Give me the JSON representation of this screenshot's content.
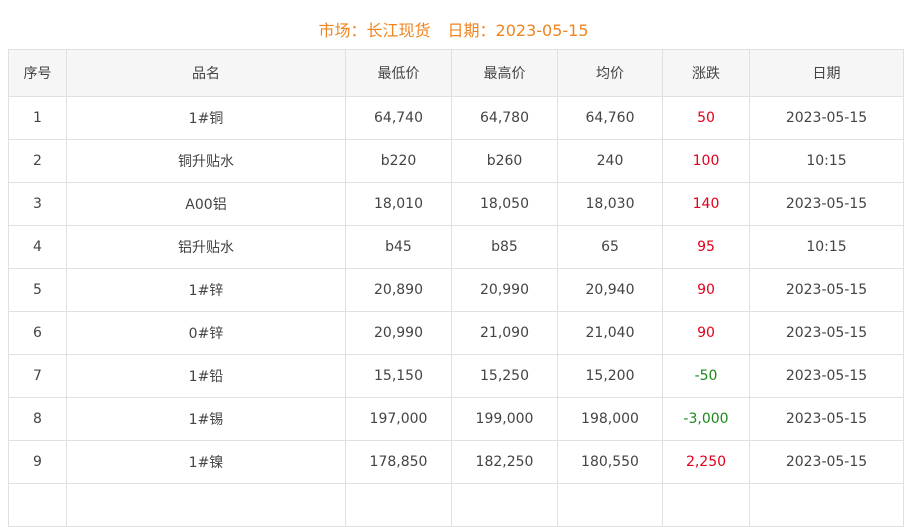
{
  "title": {
    "market": "市场：长江现货",
    "date": "日期：2023-05-15"
  },
  "colors": {
    "title": "#f0851f",
    "up": "#e0001b",
    "down": "#1a8a1a"
  },
  "columns": [
    "序号",
    "品名",
    "最低价",
    "最高价",
    "均价",
    "涨跌",
    "日期"
  ],
  "rows": [
    {
      "no": "1",
      "name": "1#铜",
      "low": "64,740",
      "high": "64,780",
      "avg": "64,760",
      "change": "50",
      "dir": "up",
      "date": "2023-05-15"
    },
    {
      "no": "2",
      "name": "铜升贴水",
      "low": "b220",
      "high": "b260",
      "avg": "240",
      "change": "100",
      "dir": "up",
      "date": "10:15"
    },
    {
      "no": "3",
      "name": "A00铝",
      "low": "18,010",
      "high": "18,050",
      "avg": "18,030",
      "change": "140",
      "dir": "up",
      "date": "2023-05-15"
    },
    {
      "no": "4",
      "name": "铝升贴水",
      "low": "b45",
      "high": "b85",
      "avg": "65",
      "change": "95",
      "dir": "up",
      "date": "10:15"
    },
    {
      "no": "5",
      "name": "1#锌",
      "low": "20,890",
      "high": "20,990",
      "avg": "20,940",
      "change": "90",
      "dir": "up",
      "date": "2023-05-15"
    },
    {
      "no": "6",
      "name": "0#锌",
      "low": "20,990",
      "high": "21,090",
      "avg": "21,040",
      "change": "90",
      "dir": "up",
      "date": "2023-05-15"
    },
    {
      "no": "7",
      "name": "1#铅",
      "low": "15,150",
      "high": "15,250",
      "avg": "15,200",
      "change": "-50",
      "dir": "down",
      "date": "2023-05-15"
    },
    {
      "no": "8",
      "name": "1#锡",
      "low": "197,000",
      "high": "199,000",
      "avg": "198,000",
      "change": "-3,000",
      "dir": "down",
      "date": "2023-05-15"
    },
    {
      "no": "9",
      "name": "1#镍",
      "low": "178,850",
      "high": "182,250",
      "avg": "180,550",
      "change": "2,250",
      "dir": "up",
      "date": "2023-05-15"
    }
  ]
}
